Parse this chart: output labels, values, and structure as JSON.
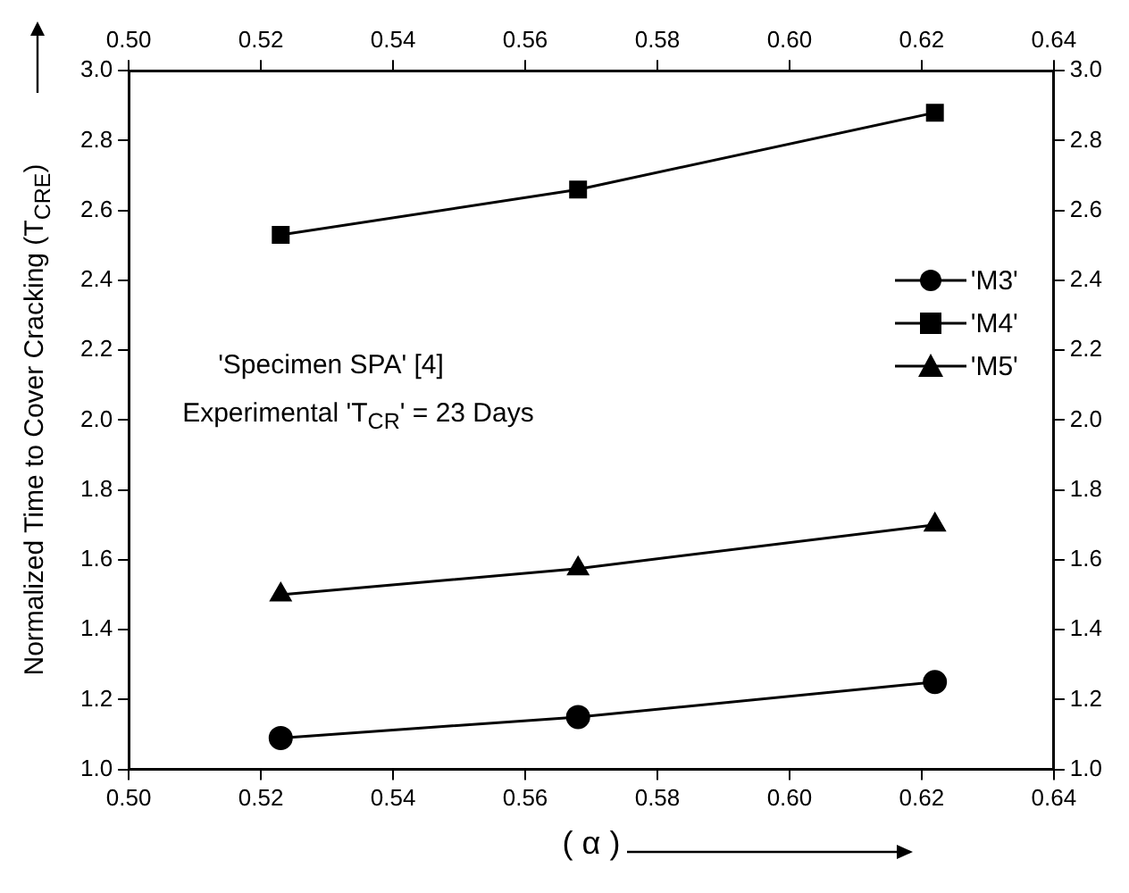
{
  "chart_data": {
    "type": "line",
    "xlabel": "( α )",
    "ylabel": "Normalized Time to Cover Cracking (T$_{CRE}$)",
    "x": [
      0.523,
      0.568,
      0.622
    ],
    "series": [
      {
        "name": "'M3'",
        "color": "#000000",
        "marker": "circle",
        "values": [
          1.09,
          1.15,
          1.25
        ]
      },
      {
        "name": "'M4'",
        "color": "#000000",
        "marker": "square",
        "values": [
          2.53,
          2.66,
          2.88
        ]
      },
      {
        "name": "'M5'",
        "color": "#000000",
        "marker": "triangle",
        "values": [
          1.5,
          1.575,
          1.7
        ]
      }
    ],
    "xlim": [
      0.5,
      0.64
    ],
    "xticks": [
      {
        "value": 0.5,
        "label": "0.50"
      },
      {
        "value": 0.52,
        "label": "0.52"
      },
      {
        "value": 0.54,
        "label": "0.54"
      },
      {
        "value": 0.56,
        "label": "0.56"
      },
      {
        "value": 0.58,
        "label": "0.58"
      },
      {
        "value": 0.6,
        "label": "0.60"
      },
      {
        "value": 0.62,
        "label": "0.62"
      },
      {
        "value": 0.64,
        "label": "0.64"
      }
    ],
    "x2lim": [
      0.5,
      0.64
    ],
    "x2ticks": [
      {
        "value": 0.5,
        "label": "0.50"
      },
      {
        "value": 0.52,
        "label": "0.52"
      },
      {
        "value": 0.54,
        "label": "0.54"
      },
      {
        "value": 0.56,
        "label": "0.56"
      },
      {
        "value": 0.58,
        "label": "0.58"
      },
      {
        "value": 0.6,
        "label": "0.60"
      },
      {
        "value": 0.62,
        "label": "0.62"
      },
      {
        "value": 0.64,
        "label": "0.64"
      }
    ],
    "ylim": [
      1.0,
      3.0
    ],
    "yticks": [
      {
        "value": 1,
        "label": "1.0"
      },
      1.2,
      1.4,
      1.6,
      1.8,
      {
        "value": 2,
        "label": "2.0"
      },
      2.2,
      2.4,
      2.6,
      2.8,
      {
        "value": 3,
        "label": "3.0"
      }
    ],
    "y2lim": [
      1.0,
      3.0
    ],
    "y2ticks": [
      {
        "value": 1,
        "label": "1.0"
      },
      1.2,
      1.4,
      1.6,
      1.8,
      {
        "value": 2,
        "label": "2.0"
      },
      2.2,
      2.4,
      2.6,
      2.8,
      {
        "value": 3,
        "label": "3.0"
      }
    ],
    "annotations": [
      "'Specimen SPA' [4]",
      "Experimental 'T$_{CR}$' = 23 Days"
    ],
    "legend": "top right",
    "grid": false,
    "line_style": "solid"
  }
}
